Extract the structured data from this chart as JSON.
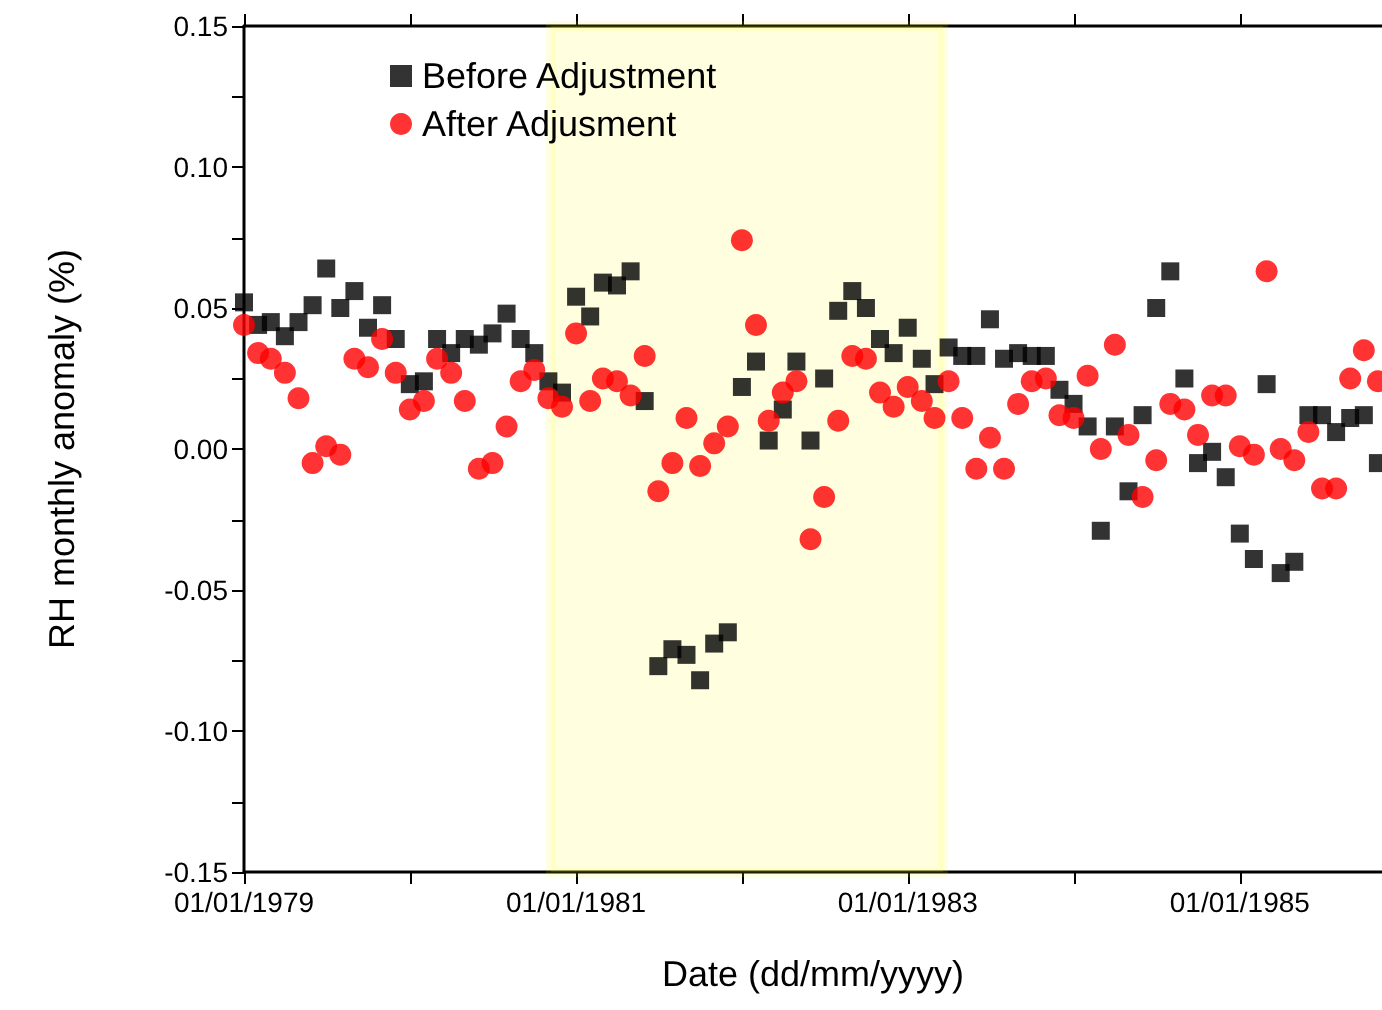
{
  "chart_data": {
    "type": "scatter",
    "xlabel": "Date (dd/mm/yyyy)",
    "ylabel": "RH monthly anomaly (%)",
    "x": [
      "1979-01",
      "1979-02",
      "1979-03",
      "1979-04",
      "1979-05",
      "1979-06",
      "1979-07",
      "1979-08",
      "1979-09",
      "1979-10",
      "1979-11",
      "1979-12",
      "1980-01",
      "1980-02",
      "1980-03",
      "1980-04",
      "1980-05",
      "1980-06",
      "1980-07",
      "1980-08",
      "1980-09",
      "1980-10",
      "1980-11",
      "1980-12",
      "1981-01",
      "1981-02",
      "1981-03",
      "1981-04",
      "1981-05",
      "1981-06",
      "1981-07",
      "1981-08",
      "1981-09",
      "1981-10",
      "1981-11",
      "1981-12",
      "1982-01",
      "1982-02",
      "1982-03",
      "1982-04",
      "1982-05",
      "1982-06",
      "1982-07",
      "1982-08",
      "1982-09",
      "1982-10",
      "1982-11",
      "1982-12",
      "1983-01",
      "1983-02",
      "1983-03",
      "1983-04",
      "1983-05",
      "1983-06",
      "1983-07",
      "1983-08",
      "1983-09",
      "1983-10",
      "1983-11",
      "1983-12",
      "1984-01",
      "1984-02",
      "1984-03",
      "1984-04",
      "1984-05",
      "1984-06",
      "1984-07",
      "1984-08",
      "1984-09",
      "1984-10",
      "1984-11",
      "1984-12",
      "1985-01",
      "1985-02",
      "1985-03",
      "1985-04",
      "1985-05",
      "1985-06",
      "1985-07",
      "1985-08",
      "1985-09",
      "1985-10",
      "1985-11"
    ],
    "series": [
      {
        "name": "Before Adjustment",
        "color": "#000000",
        "marker": "square",
        "values": [
          0.052,
          0.044,
          0.045,
          0.04,
          0.045,
          0.051,
          0.064,
          0.05,
          0.056,
          0.043,
          0.051,
          0.039,
          0.023,
          0.024,
          0.039,
          0.034,
          0.039,
          0.037,
          0.041,
          0.048,
          0.039,
          0.034,
          0.024,
          0.02,
          0.054,
          0.047,
          0.059,
          0.058,
          0.063,
          0.017,
          -0.077,
          -0.071,
          -0.073,
          -0.082,
          -0.069,
          -0.065,
          0.022,
          0.031,
          0.003,
          0.014,
          0.031,
          0.003,
          0.025,
          0.049,
          0.056,
          0.05,
          0.039,
          0.034,
          0.043,
          0.032,
          0.023,
          0.036,
          0.033,
          0.033,
          0.046,
          0.032,
          0.034,
          0.033,
          0.033,
          0.021,
          0.016,
          0.008,
          -0.029,
          0.008,
          -0.015,
          0.012,
          0.05,
          0.063,
          0.025,
          -0.005,
          -0.001,
          -0.01,
          -0.03,
          -0.039,
          0.023,
          -0.044,
          -0.04,
          0.012,
          0.012,
          0.006,
          0.011,
          0.012,
          -0.005
        ]
      },
      {
        "name": "After Adjusment",
        "color": "#ff0000",
        "marker": "circle",
        "values": [
          0.044,
          0.034,
          0.032,
          0.027,
          0.018,
          -0.005,
          0.001,
          -0.002,
          0.032,
          0.029,
          0.039,
          0.027,
          0.014,
          0.017,
          0.032,
          0.027,
          0.017,
          -0.007,
          -0.005,
          0.008,
          0.024,
          0.028,
          0.018,
          0.015,
          0.041,
          0.017,
          0.025,
          0.024,
          0.019,
          0.033,
          -0.015,
          -0.005,
          0.011,
          -0.006,
          0.002,
          0.008,
          0.074,
          0.044,
          0.01,
          0.02,
          0.024,
          -0.032,
          -0.017,
          0.01,
          0.033,
          0.032,
          0.02,
          0.015,
          0.022,
          0.017,
          0.011,
          0.024,
          0.011,
          -0.007,
          0.004,
          -0.007,
          0.016,
          0.024,
          0.025,
          0.012,
          0.011,
          0.026,
          0.0,
          0.037,
          0.005,
          -0.017,
          -0.004,
          0.016,
          0.014,
          0.005,
          0.019,
          0.019,
          0.001,
          -0.002,
          0.063,
          0.0,
          -0.004,
          0.006,
          -0.014,
          -0.014,
          0.025,
          0.035,
          0.024
        ]
      }
    ],
    "xlim": [
      "1979-01-01",
      "1985-11-10"
    ],
    "xticks": [
      {
        "value": "1979-01-01",
        "label": "01/01/1979"
      },
      {
        "value": "1980-01-01",
        "label": null
      },
      {
        "value": "1981-01-01",
        "label": "01/01/1981"
      },
      {
        "value": "1982-01-01",
        "label": null
      },
      {
        "value": "1983-01-01",
        "label": "01/01/1983"
      },
      {
        "value": "1984-01-01",
        "label": null
      },
      {
        "value": "1985-01-01",
        "label": "01/01/1985"
      }
    ],
    "ylim": [
      -0.15,
      0.15
    ],
    "yticks": [
      {
        "value": -0.15,
        "label": "-0.15"
      },
      {
        "value": -0.125,
        "label": null
      },
      {
        "value": -0.1,
        "label": "-0.10"
      },
      {
        "value": -0.075,
        "label": null
      },
      {
        "value": -0.05,
        "label": "-0.05"
      },
      {
        "value": -0.025,
        "label": null
      },
      {
        "value": 0,
        "label": "0.00"
      },
      {
        "value": 0.025,
        "label": null
      },
      {
        "value": 0.05,
        "label": "0.05"
      },
      {
        "value": 0.075,
        "label": null
      },
      {
        "value": 0.1,
        "label": "0.10"
      },
      {
        "value": 0.125,
        "label": null
      },
      {
        "value": 0.15,
        "label": "0.15"
      }
    ],
    "bands": [
      {
        "axis": "x",
        "from": "1980-11-07",
        "to": "1983-03-20",
        "color": "#ffff00"
      }
    ],
    "legend": "top left",
    "grid": false
  }
}
